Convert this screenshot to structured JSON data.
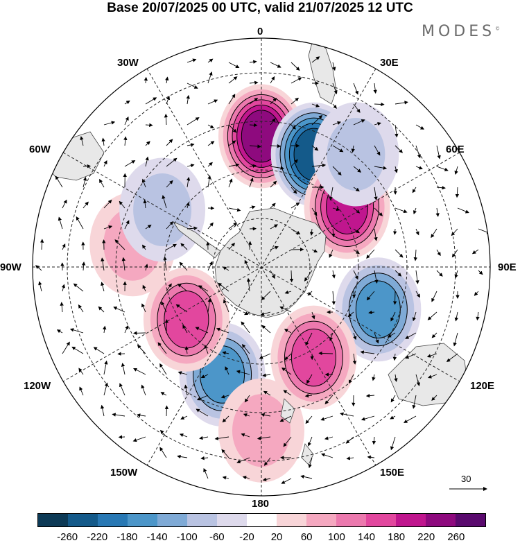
{
  "title": "Base 20/07/2025 00 UTC, valid 21/07/2025 12 UTC",
  "brand": "MODES",
  "brand_mark": "©",
  "longitude_labels": {
    "l0": "0",
    "l30e": "30E",
    "l60e": "60E",
    "l90e": "90E",
    "l120e": "120E",
    "l150e": "150E",
    "l180": "180",
    "l150w": "150W",
    "l120w": "120W",
    "l90w": "90W",
    "l60w": "60W",
    "l30w": "30W"
  },
  "reference_vector": "30",
  "colorbar": {
    "colors": [
      "#0d3a56",
      "#145a8a",
      "#2878b4",
      "#4c96c9",
      "#7faad6",
      "#b9c3e2",
      "#dedaec",
      "#ffffff",
      "#f8d5d8",
      "#f5a8c0",
      "#ec79ae",
      "#e2479e",
      "#c0168e",
      "#8e0a7e",
      "#5a0a6e"
    ],
    "ticks": [
      "-260",
      "-220",
      "-180",
      "-140",
      "-100",
      "-60",
      "-20",
      "20",
      "60",
      "100",
      "140",
      "180",
      "220",
      "260"
    ]
  },
  "anomaly_centers": [
    {
      "lon": 0,
      "lat": -50,
      "value": 220,
      "label": "positive center south of Africa"
    },
    {
      "lon": 25,
      "lat": -52,
      "value": -240,
      "label": "negative center"
    },
    {
      "lon": 55,
      "lat": -58,
      "value": 210,
      "label": "positive center"
    },
    {
      "lon": 40,
      "lat": -45,
      "value": -80,
      "label": "negative center"
    },
    {
      "lon": 110,
      "lat": -52,
      "value": -160,
      "label": "negative center south of Australia"
    },
    {
      "lon": 150,
      "lat": -58,
      "value": 160,
      "label": "positive center"
    },
    {
      "lon": 200,
      "lat": -55,
      "value": -150,
      "label": "negative center"
    },
    {
      "lon": 235,
      "lat": -62,
      "value": 160,
      "label": "positive center"
    },
    {
      "lon": 180,
      "lat": -40,
      "value": 80,
      "label": "positive center"
    },
    {
      "lon": 280,
      "lat": -50,
      "value": 60,
      "label": "positive center"
    },
    {
      "lon": 300,
      "lat": -55,
      "value": -60,
      "label": "negative center"
    }
  ]
}
